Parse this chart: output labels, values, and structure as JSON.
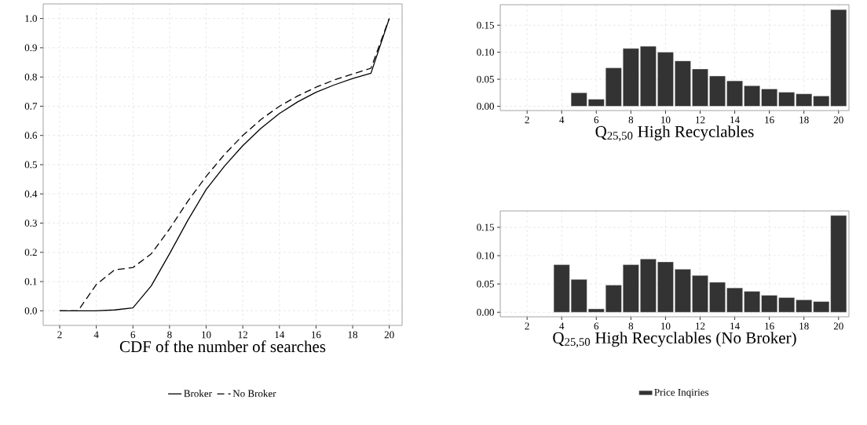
{
  "chart_data": [
    {
      "type": "line",
      "xlabel": "CDF of the number of searches",
      "x": [
        2,
        3,
        4,
        5,
        6,
        7,
        8,
        9,
        10,
        11,
        12,
        13,
        14,
        15,
        16,
        17,
        18,
        19,
        20
      ],
      "series": [
        {
          "name": "Broker",
          "color": "#000000",
          "line_style": "solid",
          "values": [
            0,
            0,
            0,
            0.003,
            0.01,
            0.085,
            0.195,
            0.31,
            0.415,
            0.495,
            0.565,
            0.625,
            0.675,
            0.715,
            0.748,
            0.773,
            0.795,
            0.813,
            1.0
          ]
        },
        {
          "name": "No Broker",
          "color": "#000000",
          "line_style": "dashed",
          "values": [
            0,
            0,
            0.09,
            0.14,
            0.148,
            0.195,
            0.28,
            0.375,
            0.46,
            0.535,
            0.6,
            0.655,
            0.7,
            0.735,
            0.765,
            0.79,
            0.81,
            0.83,
            1.0
          ]
        }
      ],
      "xlim": [
        1.1,
        20.7
      ],
      "ylim": [
        -0.05,
        1.05
      ],
      "xticks": [
        2,
        4,
        6,
        8,
        10,
        12,
        14,
        16,
        18,
        20
      ],
      "yticks": [
        {
          "value": 0,
          "label": "0.0"
        },
        {
          "value": 0.1,
          "label": "0.1"
        },
        {
          "value": 0.2,
          "label": "0.2"
        },
        {
          "value": 0.3,
          "label": "0.3"
        },
        {
          "value": 0.4,
          "label": "0.4"
        },
        {
          "value": 0.5,
          "label": "0.5"
        },
        {
          "value": 0.6,
          "label": "0.6"
        },
        {
          "value": 0.7,
          "label": "0.7"
        },
        {
          "value": 0.8,
          "label": "0.8"
        },
        {
          "value": 0.9,
          "label": "0.9"
        },
        {
          "value": 1.0,
          "label": "1.0"
        }
      ],
      "grid": true,
      "legend": "bottom"
    },
    {
      "type": "bar",
      "xlabel": "Q$_{25,50}$   High Recyclables",
      "x": [
        5,
        6,
        7,
        8,
        9,
        10,
        11,
        12,
        13,
        14,
        15,
        16,
        17,
        18,
        19,
        20
      ],
      "series": [
        {
          "color": "#333333",
          "values": [
            0.025,
            0.013,
            0.071,
            0.107,
            0.111,
            0.1,
            0.084,
            0.069,
            0.056,
            0.047,
            0.038,
            0.032,
            0.026,
            0.023,
            0.019,
            0.179
          ]
        }
      ],
      "xlim": [
        0.45,
        20.6
      ],
      "ylim": [
        -0.008,
        0.188
      ],
      "xticks": [
        2,
        4,
        6,
        8,
        10,
        12,
        14,
        16,
        18,
        20
      ],
      "yticks": [
        {
          "value": 0,
          "label": "0.00"
        },
        {
          "value": 0.05,
          "label": "0.05"
        },
        {
          "value": 0.1,
          "label": "0.10"
        },
        {
          "value": 0.15,
          "label": "0.15"
        }
      ],
      "grid": true
    },
    {
      "type": "bar",
      "xlabel": "Q$_{25,50}$   High Recyclables (No Broker)",
      "x": [
        4,
        5,
        6,
        7,
        8,
        9,
        10,
        11,
        12,
        13,
        14,
        15,
        16,
        17,
        18,
        19,
        20
      ],
      "series": [
        {
          "name": "Price Inqiries",
          "color": "#333333",
          "values": [
            0.084,
            0.058,
            0.006,
            0.048,
            0.084,
            0.094,
            0.089,
            0.076,
            0.065,
            0.053,
            0.043,
            0.037,
            0.03,
            0.026,
            0.022,
            0.019,
            0.171
          ]
        }
      ],
      "xlim": [
        0.45,
        20.6
      ],
      "ylim": [
        -0.008,
        0.179
      ],
      "xticks": [
        2,
        4,
        6,
        8,
        10,
        12,
        14,
        16,
        18,
        20
      ],
      "yticks": [
        {
          "value": 0,
          "label": "0.00"
        },
        {
          "value": 0.05,
          "label": "0.05"
        },
        {
          "value": 0.1,
          "label": "0.10"
        },
        {
          "value": 0.15,
          "label": "0.15"
        }
      ],
      "grid": true,
      "legend": "bottom"
    }
  ]
}
